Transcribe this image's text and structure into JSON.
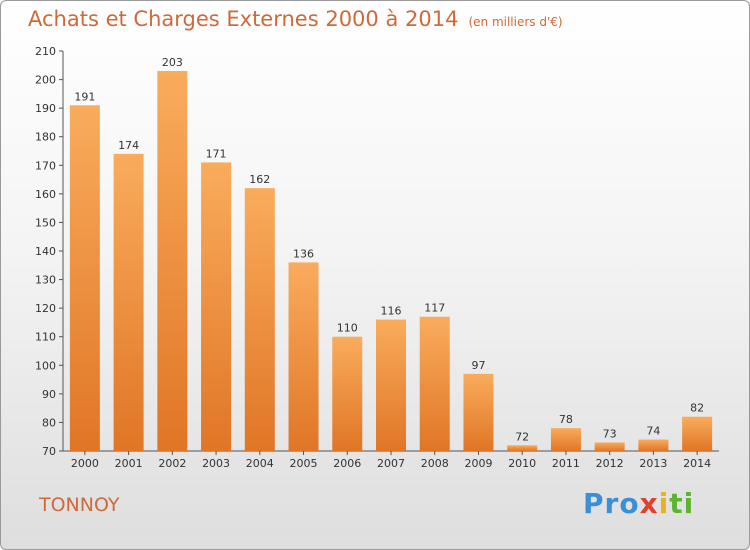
{
  "header": {
    "title": "Achats et Charges Externes 2000 à 2014",
    "unit": "(en milliers d'€)"
  },
  "commune": "TONNOY",
  "logo": {
    "p1": "Pro",
    "p2": "x",
    "p3": "i",
    "p4": "ti"
  },
  "colors": {
    "bar_light": "#f7a552",
    "bar_dark": "#e07626",
    "title": "#d0693a"
  },
  "chart_data": {
    "type": "bar",
    "title": "Achats et Charges Externes 2000 à 2014",
    "subtitle": "(en milliers d'€)",
    "categories": [
      "2000",
      "2001",
      "2002",
      "2003",
      "2004",
      "2005",
      "2006",
      "2007",
      "2008",
      "2009",
      "2010",
      "2011",
      "2012",
      "2013",
      "2014"
    ],
    "values": [
      191,
      174,
      203,
      171,
      162,
      136,
      110,
      116,
      117,
      97,
      72,
      78,
      73,
      74,
      82
    ],
    "ylim": [
      70,
      210
    ],
    "yticks": [
      70,
      80,
      90,
      100,
      110,
      120,
      130,
      140,
      150,
      160,
      170,
      180,
      190,
      200,
      210
    ],
    "grid": false,
    "legend": "none"
  }
}
